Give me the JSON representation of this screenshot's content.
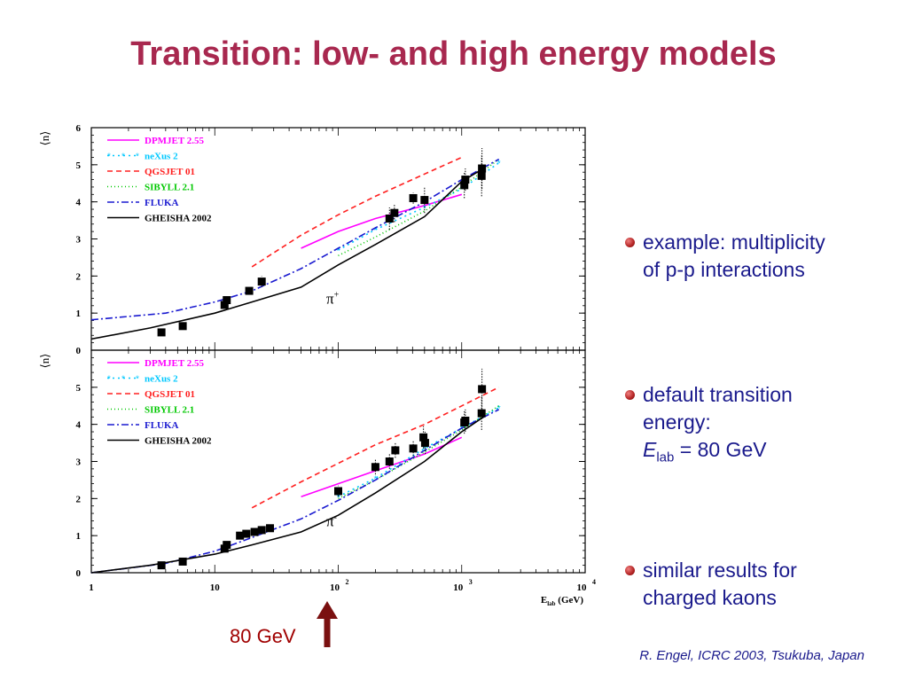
{
  "title": "Transition: low- and high energy models",
  "bullets": [
    {
      "lines": [
        "example: multiplicity",
        "of p-p interactions"
      ]
    },
    {
      "lines": [
        "default transition",
        "energy:"
      ],
      "formula": {
        "var": "E",
        "sub": "lab",
        "rest": " = 80 GeV"
      }
    },
    {
      "lines": [
        "similar results for",
        "charged kaons"
      ]
    }
  ],
  "arrow_label": "80 GeV",
  "credit": "R. Engel, ICRC 2003, Tsukuba, Japan",
  "colors": {
    "title": "#a8284f",
    "text": "#1a1a8c",
    "arrow": "#7a1010"
  },
  "chart_data": [
    {
      "type": "line",
      "ylabel": "⟨n⟩",
      "particle_label": "π",
      "particle_sup": "+",
      "xscale": "log",
      "xlim": [
        1,
        10000
      ],
      "ylim": [
        0,
        6
      ],
      "yticks": [
        "0",
        "1",
        "2",
        "3",
        "4",
        "5",
        "6"
      ],
      "legend_position": "top-left",
      "series": [
        {
          "name": "DPMJET 2.55",
          "color": "#ff00ff",
          "dash": "",
          "x": [
            50,
            100,
            200,
            500,
            1000
          ],
          "y": [
            2.75,
            3.2,
            3.55,
            3.9,
            4.2
          ]
        },
        {
          "name": "neXus 2",
          "color": "#00c8ff",
          "dash": "2,4",
          "marker": "star",
          "x": [
            100,
            200,
            500,
            1000,
            2000
          ],
          "y": [
            2.7,
            3.25,
            3.85,
            4.35,
            5.05
          ]
        },
        {
          "name": "QGSJET 01",
          "color": "#ff2020",
          "dash": "6,4",
          "x": [
            20,
            50,
            100,
            200,
            500,
            1000
          ],
          "y": [
            2.25,
            3.1,
            3.65,
            4.15,
            4.75,
            5.2
          ]
        },
        {
          "name": "SIBYLL 2.1",
          "color": "#00c800",
          "dash": "1,3",
          "x": [
            100,
            200,
            500,
            1000,
            2000
          ],
          "y": [
            2.55,
            3.05,
            3.75,
            4.4,
            5.15
          ]
        },
        {
          "name": "FLUKA",
          "color": "#1a1ad0",
          "dash": "8,3,2,3",
          "x": [
            1,
            4,
            10,
            20,
            50,
            100,
            200,
            500,
            1000,
            2000
          ],
          "y": [
            0.82,
            1.0,
            1.3,
            1.6,
            2.2,
            2.75,
            3.3,
            4.0,
            4.6,
            5.15
          ]
        },
        {
          "name": "GHEISHA 2002",
          "color": "#000000",
          "dash": "",
          "x": [
            1,
            3,
            10,
            20,
            50,
            100,
            200,
            500,
            1000,
            1500
          ],
          "y": [
            0.3,
            0.6,
            1.0,
            1.3,
            1.7,
            2.3,
            2.85,
            3.6,
            4.55,
            4.9
          ]
        }
      ],
      "points": [
        {
          "x": 3.7,
          "y": 0.48
        },
        {
          "x": 5.5,
          "y": 0.65
        },
        {
          "x": 12,
          "y": 1.22,
          "err": 0.1
        },
        {
          "x": 12.5,
          "y": 1.35,
          "err": 0.1
        },
        {
          "x": 19,
          "y": 1.6,
          "err": 0.1
        },
        {
          "x": 24,
          "y": 1.85,
          "err": 0.15
        },
        {
          "x": 260,
          "y": 3.55,
          "err": 0.3
        },
        {
          "x": 285,
          "y": 3.7,
          "err": 0.25
        },
        {
          "x": 405,
          "y": 4.1,
          "err": 0.15
        },
        {
          "x": 500,
          "y": 4.05,
          "err": 0.35
        },
        {
          "x": 1050,
          "y": 4.45,
          "err": 0.35
        },
        {
          "x": 1070,
          "y": 4.6,
          "err": 0.3
        },
        {
          "x": 1450,
          "y": 4.7,
          "err": 0.55
        },
        {
          "x": 1460,
          "y": 4.9,
          "err": 0.55
        }
      ]
    },
    {
      "type": "line",
      "ylabel": "⟨n⟩",
      "particle_label": "π",
      "particle_sup": "-",
      "xscale": "log",
      "xlim": [
        1,
        10000
      ],
      "ylim": [
        0,
        6
      ],
      "yticks": [
        "0",
        "1",
        "2",
        "3",
        "4",
        "5"
      ],
      "xticks": [
        {
          "x": 1,
          "base": "1",
          "exp": ""
        },
        {
          "x": 10,
          "base": "10",
          "exp": ""
        },
        {
          "x": 100,
          "base": "10",
          "exp": "2"
        },
        {
          "x": 1000,
          "base": "10",
          "exp": "3"
        },
        {
          "x": 10000,
          "base": "10",
          "exp": "4"
        }
      ],
      "xlabel": {
        "var": "E",
        "sub": "lab",
        "unit": "(GeV)"
      },
      "legend_position": "top-left",
      "series": [
        {
          "name": "DPMJET 2.55",
          "color": "#ff00ff",
          "dash": "",
          "x": [
            50,
            100,
            200,
            500,
            1000
          ],
          "y": [
            2.05,
            2.4,
            2.75,
            3.2,
            3.65
          ]
        },
        {
          "name": "neXus 2",
          "color": "#00c8ff",
          "dash": "2,4",
          "marker": "star",
          "x": [
            100,
            200,
            500,
            1000,
            2000
          ],
          "y": [
            2.05,
            2.55,
            3.35,
            3.9,
            4.45
          ]
        },
        {
          "name": "QGSJET 01",
          "color": "#ff2020",
          "dash": "6,4",
          "x": [
            20,
            50,
            100,
            200,
            500,
            1000,
            2000
          ],
          "y": [
            1.75,
            2.45,
            2.95,
            3.45,
            4.0,
            4.5,
            5.0
          ]
        },
        {
          "name": "SIBYLL 2.1",
          "color": "#00c800",
          "dash": "1,3",
          "x": [
            100,
            200,
            500,
            1000,
            2000
          ],
          "y": [
            2.0,
            2.5,
            3.25,
            3.85,
            4.5
          ]
        },
        {
          "name": "FLUKA",
          "color": "#1a1ad0",
          "dash": "8,3,2,3",
          "x": [
            1,
            4,
            10,
            20,
            50,
            100,
            200,
            500,
            1000,
            2000
          ],
          "y": [
            0.0,
            0.25,
            0.58,
            0.95,
            1.45,
            1.95,
            2.5,
            3.3,
            3.9,
            4.4
          ]
        },
        {
          "name": "GHEISHA 2002",
          "color": "#000000",
          "dash": "",
          "x": [
            1,
            3,
            10,
            20,
            50,
            100,
            200,
            500,
            1000,
            1500
          ],
          "y": [
            0.0,
            0.2,
            0.5,
            0.75,
            1.1,
            1.55,
            2.15,
            3.0,
            3.8,
            4.2
          ]
        }
      ],
      "points": [
        {
          "x": 3.7,
          "y": 0.2
        },
        {
          "x": 5.5,
          "y": 0.3
        },
        {
          "x": 12,
          "y": 0.65,
          "err": 0.1
        },
        {
          "x": 12.5,
          "y": 0.75,
          "err": 0.1
        },
        {
          "x": 16,
          "y": 1.0,
          "err": 0.08
        },
        {
          "x": 18,
          "y": 1.05,
          "err": 0.08
        },
        {
          "x": 21,
          "y": 1.1,
          "err": 0.08
        },
        {
          "x": 24,
          "y": 1.15,
          "err": 0.08
        },
        {
          "x": 28,
          "y": 1.2,
          "err": 0.08
        },
        {
          "x": 100,
          "y": 2.2,
          "err": 0.15
        },
        {
          "x": 200,
          "y": 2.85,
          "err": 0.2
        },
        {
          "x": 260,
          "y": 3.0,
          "err": 0.2
        },
        {
          "x": 290,
          "y": 3.3,
          "err": 0.2
        },
        {
          "x": 405,
          "y": 3.35,
          "err": 0.2
        },
        {
          "x": 490,
          "y": 3.65,
          "err": 0.3
        },
        {
          "x": 505,
          "y": 3.5,
          "err": 0.3
        },
        {
          "x": 1050,
          "y": 4.05,
          "err": 0.3
        },
        {
          "x": 1070,
          "y": 4.1,
          "err": 0.3
        },
        {
          "x": 1450,
          "y": 4.3,
          "err": 0.45
        },
        {
          "x": 1460,
          "y": 4.95,
          "err": 0.55
        }
      ]
    }
  ]
}
